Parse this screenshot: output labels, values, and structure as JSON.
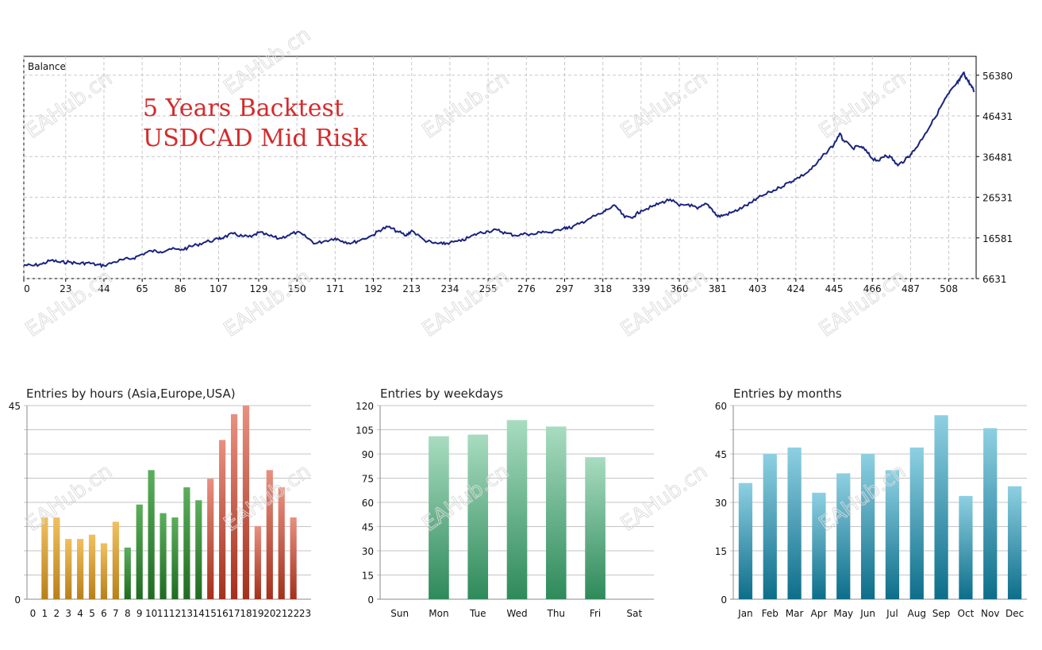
{
  "watermark": {
    "text": "EAHub.cn"
  },
  "chart_data": [
    {
      "type": "line",
      "title": "Balance",
      "annotation_lines": [
        "5 Years Backtest",
        "USDCAD Mid Risk"
      ],
      "y_axis_side": "right",
      "grid": true,
      "line_color": "#1a237e",
      "x_ticks": [
        0,
        23,
        44,
        65,
        86,
        107,
        129,
        150,
        171,
        192,
        213,
        234,
        255,
        276,
        297,
        318,
        339,
        360,
        381,
        403,
        424,
        445,
        466,
        487,
        508
      ],
      "y_ticks": [
        6631,
        16581,
        26531,
        36481,
        46431,
        56380
      ],
      "xlim": [
        0,
        523
      ],
      "ylim": [
        6631,
        61000
      ],
      "series": [
        {
          "x": [
            0,
            5,
            10,
            15,
            20,
            25,
            30,
            35,
            40,
            44,
            50,
            55,
            60,
            65,
            70,
            75,
            80,
            86,
            90,
            95,
            100,
            107,
            110,
            115,
            120,
            125,
            129,
            135,
            140,
            145,
            150,
            155,
            160,
            165,
            171,
            175,
            180,
            185,
            192,
            195,
            200,
            205,
            210,
            213,
            220,
            225,
            230,
            234,
            240,
            245,
            250,
            255,
            260,
            265,
            270,
            276,
            280,
            285,
            290,
            297,
            300,
            305,
            310,
            318,
            320,
            325,
            330,
            335,
            339,
            345,
            350,
            355,
            360,
            365,
            370,
            375,
            378,
            381,
            385,
            390,
            395,
            400,
            403,
            410,
            415,
            420,
            424,
            430,
            435,
            440,
            445,
            448,
            450,
            455,
            460,
            463,
            466,
            470,
            473,
            476,
            480,
            484,
            487,
            490,
            495,
            500,
            505,
            508,
            512,
            514,
            516,
            518,
            520,
            522
          ],
          "y": [
            9950,
            9800,
            10200,
            11100,
            10600,
            10700,
            10300,
            10500,
            10000,
            9800,
            10700,
            11300,
            11600,
            12600,
            13400,
            13200,
            13900,
            13600,
            14200,
            14900,
            15600,
            16300,
            16800,
            17600,
            17000,
            16800,
            17900,
            17100,
            16400,
            17200,
            18000,
            16800,
            15200,
            15800,
            16500,
            15800,
            15300,
            16100,
            17300,
            18400,
            19300,
            18200,
            17100,
            18400,
            16000,
            15300,
            15100,
            15400,
            15800,
            16800,
            17800,
            18200,
            18500,
            17700,
            17200,
            17600,
            17400,
            18200,
            17800,
            19200,
            19000,
            20000,
            21200,
            22700,
            23500,
            24400,
            21600,
            21800,
            23300,
            24200,
            25200,
            26000,
            24400,
            24800,
            23700,
            24900,
            23600,
            21800,
            22200,
            23000,
            24100,
            25300,
            26300,
            27800,
            28900,
            30100,
            31000,
            32500,
            34500,
            37200,
            39500,
            42100,
            40500,
            38600,
            38900,
            37600,
            36000,
            35500,
            36800,
            36400,
            34300,
            35700,
            37000,
            38600,
            42100,
            45700,
            49800,
            51900,
            54200,
            55200,
            57000,
            55400,
            54000,
            52300
          ]
        }
      ]
    },
    {
      "type": "bar",
      "title": "Entries by hours (Asia,Europe,USA)",
      "grid": true,
      "categories": [
        "0",
        "1",
        "2",
        "3",
        "4",
        "5",
        "6",
        "7",
        "8",
        "9",
        "10",
        "11",
        "12",
        "13",
        "14",
        "15",
        "16",
        "17",
        "18",
        "19",
        "20",
        "21",
        "22",
        "23"
      ],
      "values": [
        0,
        19,
        19,
        14,
        14,
        15,
        13,
        18,
        12,
        22,
        30,
        20,
        19,
        26,
        23,
        28,
        37,
        43,
        45,
        17,
        30,
        26,
        19,
        0
      ],
      "bar_colors": [
        "#d49a2a",
        "#d49a2a",
        "#d49a2a",
        "#d49a2a",
        "#d49a2a",
        "#d49a2a",
        "#d49a2a",
        "#d49a2a",
        "#2e7d32",
        "#2e7d32",
        "#2e7d32",
        "#2e7d32",
        "#2e7d32",
        "#2e7d32",
        "#2e7d32",
        "#c0503a",
        "#c0503a",
        "#c0503a",
        "#c0503a",
        "#c0503a",
        "#c0503a",
        "#c0503a",
        "#c0503a",
        "#c0503a"
      ],
      "y_tick_labels": [
        "0",
        "45"
      ],
      "ylim": [
        0,
        45
      ]
    },
    {
      "type": "bar",
      "title": "Entries by weekdays",
      "grid": true,
      "categories": [
        "Sun",
        "Mon",
        "Tue",
        "Wed",
        "Thu",
        "Fri",
        "Sat"
      ],
      "values": [
        0,
        101,
        102,
        111,
        107,
        88,
        0
      ],
      "bar_color": "#5fb98a",
      "y_tick_labels": [
        "0",
        "15",
        "30",
        "45",
        "60",
        "75",
        "90",
        "105",
        "120"
      ],
      "ylim": [
        0,
        120
      ]
    },
    {
      "type": "bar",
      "title": "Entries by months",
      "grid": true,
      "categories": [
        "Jan",
        "Feb",
        "Mar",
        "Apr",
        "May",
        "Jun",
        "Jul",
        "Aug",
        "Sep",
        "Oct",
        "Nov",
        "Dec"
      ],
      "values": [
        36,
        45,
        47,
        33,
        39,
        45,
        40,
        47,
        57,
        32,
        53,
        35
      ],
      "bar_color": "#3ba0bd",
      "y_tick_labels": [
        "0",
        "15",
        "30",
        "45",
        "60"
      ],
      "ylim": [
        0,
        60
      ]
    }
  ]
}
